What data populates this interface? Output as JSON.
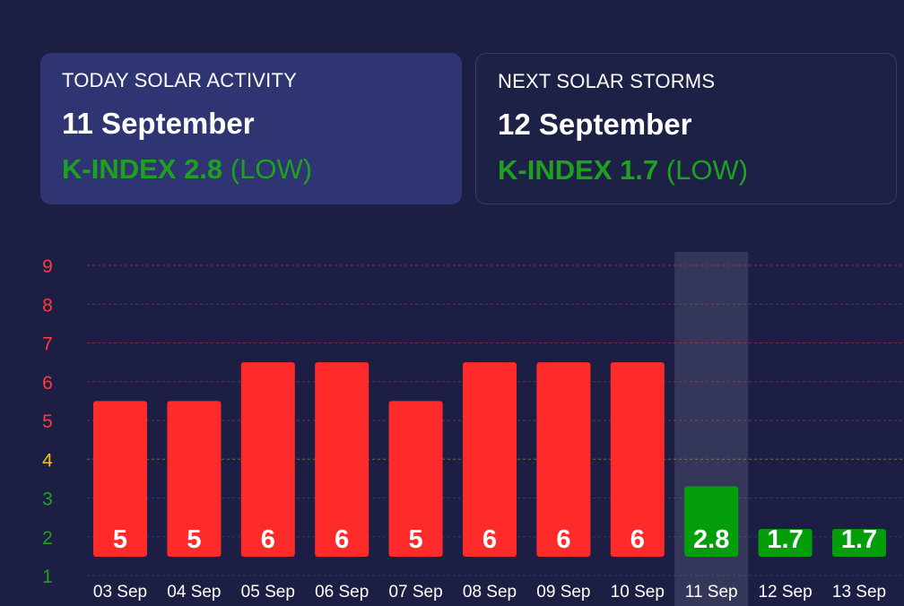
{
  "today": {
    "label": "TODAY SOLAR ACTIVITY",
    "date": "11 September",
    "kindex_text": "K-INDEX 2.8",
    "level": "(LOW)"
  },
  "next": {
    "label": "NEXT SOLAR STORMS",
    "date": "12 September",
    "kindex_text": "K-INDEX 1.7",
    "level": "(LOW)"
  },
  "colors": {
    "background": "#1c1f43",
    "high": "#ff2b2b",
    "low": "#039e0a",
    "axis_high": "#ff3a3a",
    "axis_mid": "#f0c020",
    "axis_low": "#1ea11e",
    "highlight": "#34375a"
  },
  "chart_data": {
    "type": "bar",
    "categories": [
      "03 Sep",
      "04 Sep",
      "05 Sep",
      "06 Sep",
      "07 Sep",
      "08 Sep",
      "09 Sep",
      "10 Sep",
      "11 Sep",
      "12 Sep",
      "13 Sep"
    ],
    "values": [
      5,
      5,
      6,
      6,
      5,
      6,
      6,
      6,
      2.8,
      1.7,
      1.7
    ],
    "labels": [
      "5",
      "5",
      "6",
      "6",
      "5",
      "6",
      "6",
      "6",
      "2.8",
      "1.7",
      "1.7"
    ],
    "yticks": [
      "1",
      "2",
      "3",
      "4",
      "5",
      "6",
      "7",
      "8",
      "9"
    ],
    "ylim": [
      1,
      9
    ],
    "highlight_category": "11 Sep",
    "grid": true
  }
}
